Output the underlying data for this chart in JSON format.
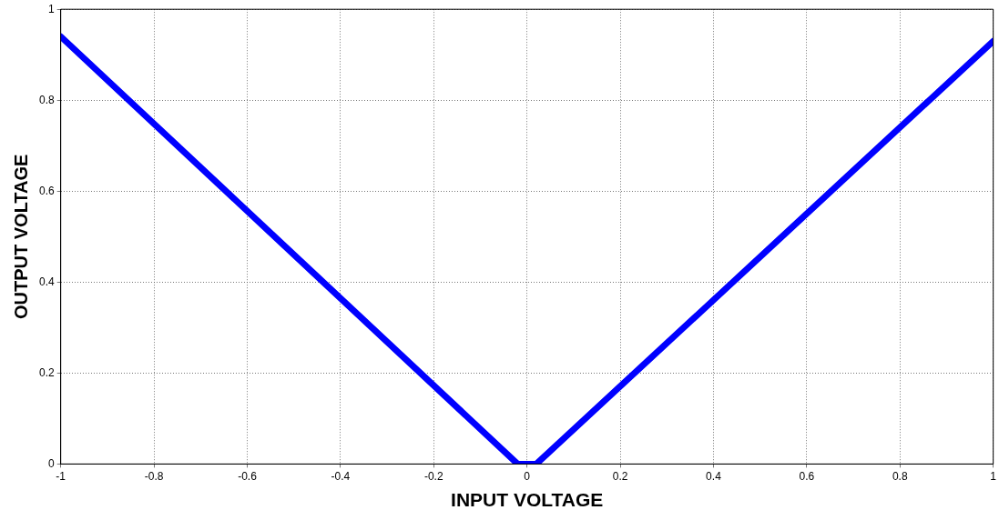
{
  "chart_data": {
    "type": "line",
    "xlabel": "INPUT VOLTAGE",
    "ylabel": "OUTPUT VOLTAGE",
    "x": [
      -1,
      -0.02,
      0.02,
      1
    ],
    "series": [
      {
        "color": "#0000ff",
        "values": [
          0.94,
          0,
          0,
          0.93
        ]
      }
    ],
    "xlim": [
      -1,
      1
    ],
    "xticks": [
      -1,
      -0.8,
      -0.6,
      -0.4,
      -0.2,
      0,
      0.2,
      0.4,
      0.6,
      0.8,
      1
    ],
    "ylim": [
      0,
      1
    ],
    "yticks": [
      0,
      0.2,
      0.4,
      0.6,
      0.8,
      1
    ],
    "grid": true,
    "legend": false,
    "marker": "none",
    "line_style": "solid"
  }
}
